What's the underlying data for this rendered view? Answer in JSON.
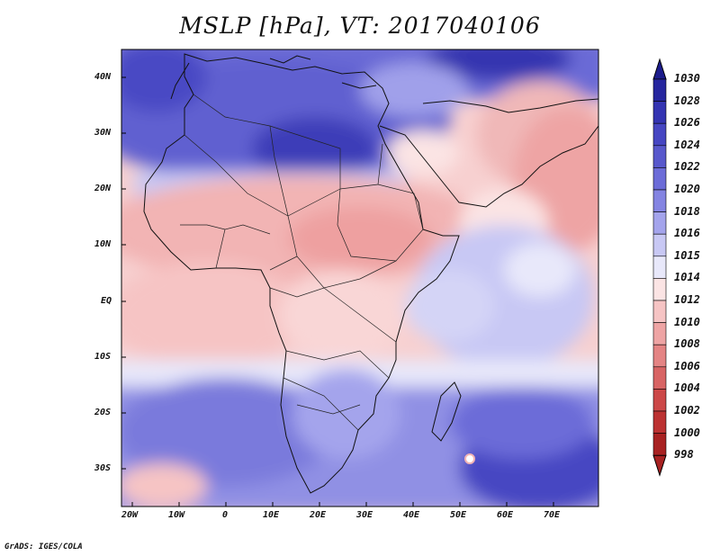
{
  "title": "MSLP [hPa], VT: 2017040106",
  "footer": "GrADS: IGES/COLA",
  "axes": {
    "lon_labels": [
      "20W",
      "10W",
      "0",
      "10E",
      "20E",
      "30E",
      "40E",
      "50E",
      "60E",
      "70E"
    ],
    "lat_labels": [
      "40N",
      "30N",
      "20N",
      "10N",
      "EQ",
      "10S",
      "20S",
      "30S"
    ]
  },
  "colorbar": {
    "labels": [
      "1030",
      "1028",
      "1026",
      "1024",
      "1022",
      "1020",
      "1018",
      "1016",
      "1015",
      "1014",
      "1012",
      "1010",
      "1008",
      "1006",
      "1004",
      "1002",
      "1000",
      "998"
    ],
    "colors": [
      "#1c1c8c",
      "#26269e",
      "#3434b2",
      "#4646c2",
      "#5858cc",
      "#6c6cd8",
      "#8484e2",
      "#a4a4ec",
      "#c8c8f4",
      "#e8e8fa",
      "#fbe4e4",
      "#f6c4c4",
      "#eea4a4",
      "#e48484",
      "#d86464",
      "#cc4848",
      "#bc3232",
      "#a82222"
    ]
  }
}
